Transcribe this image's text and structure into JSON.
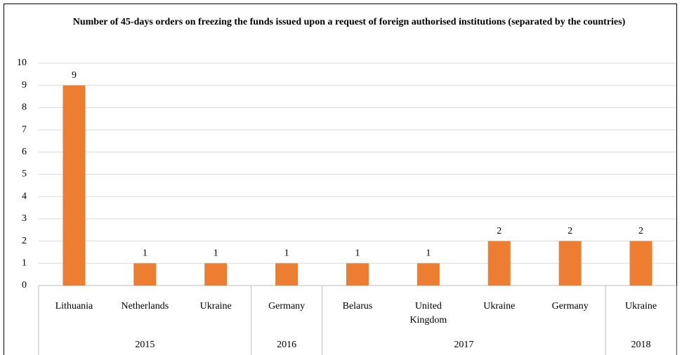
{
  "chart_data": {
    "type": "bar",
    "title": "Number of 45-days orders on freezing the funds issued upon a request of foreign authorised institutions (separated by the countries)",
    "groups": [
      {
        "label": "2015",
        "categories": [
          "Lithuania",
          "Netherlands",
          "Ukraine"
        ],
        "values": [
          9,
          1,
          1
        ]
      },
      {
        "label": "2016",
        "categories": [
          "Germany"
        ],
        "values": [
          1
        ]
      },
      {
        "label": "2017",
        "categories": [
          "Belarus",
          "United Kingdom",
          "Ukraine",
          "Germany"
        ],
        "values": [
          1,
          1,
          2,
          2
        ]
      },
      {
        "label": "2018",
        "categories": [
          "Ukraine"
        ],
        "values": [
          2
        ]
      }
    ],
    "color": "#ED7D31",
    "ylim": [
      0,
      10
    ],
    "yticks": [
      0,
      1,
      2,
      3,
      4,
      5,
      6,
      7,
      8,
      9,
      10
    ],
    "grid": true
  }
}
